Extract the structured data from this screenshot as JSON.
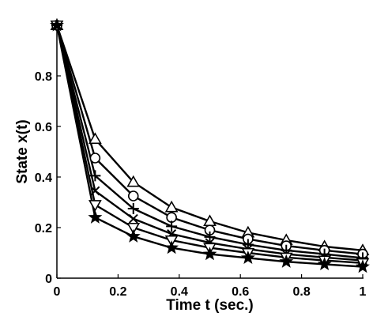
{
  "chart_data": {
    "type": "line",
    "title": "",
    "xlabel": "Time t (sec.)",
    "ylabel": "State x(t)",
    "xlim": [
      0,
      1
    ],
    "ylim": [
      0,
      1
    ],
    "x_ticks": [
      "0",
      "0.2",
      "0.4",
      "0.6",
      "0.8",
      "1"
    ],
    "y_ticks": [
      "0",
      "0.2",
      "0.4",
      "0.6",
      "0.8"
    ],
    "grid": false,
    "legend": "none",
    "line_color": "#000000",
    "x": [
      0,
      0.125,
      0.25,
      0.375,
      0.5,
      0.625,
      0.75,
      0.875,
      1
    ],
    "series": [
      {
        "marker": "triangle-up",
        "values": [
          1.0,
          0.55,
          0.38,
          0.28,
          0.225,
          0.18,
          0.15,
          0.125,
          0.11
        ]
      },
      {
        "marker": "circle",
        "values": [
          1.0,
          0.475,
          0.325,
          0.24,
          0.19,
          0.155,
          0.128,
          0.11,
          0.095
        ]
      },
      {
        "marker": "plus",
        "values": [
          1.0,
          0.405,
          0.275,
          0.205,
          0.163,
          0.133,
          0.11,
          0.095,
          0.08
        ]
      },
      {
        "marker": "x",
        "values": [
          1.0,
          0.345,
          0.235,
          0.175,
          0.14,
          0.115,
          0.095,
          0.082,
          0.07
        ]
      },
      {
        "marker": "triangle-down",
        "values": [
          1.0,
          0.29,
          0.2,
          0.15,
          0.12,
          0.1,
          0.082,
          0.07,
          0.06
        ]
      },
      {
        "marker": "star",
        "values": [
          1.0,
          0.24,
          0.165,
          0.12,
          0.095,
          0.08,
          0.065,
          0.055,
          0.045
        ]
      }
    ]
  }
}
